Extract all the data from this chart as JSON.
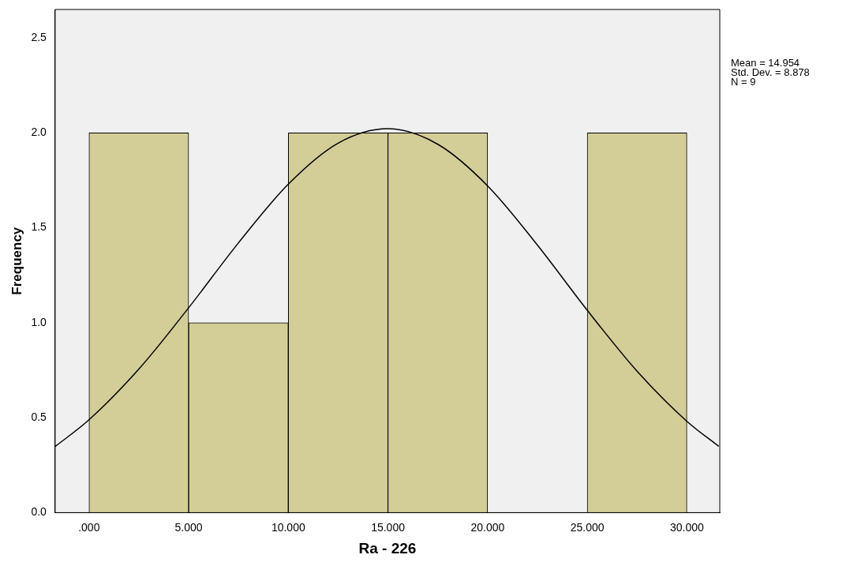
{
  "chart_data": {
    "type": "histogram",
    "xlabel": "Ra - 226",
    "ylabel": "Frequency",
    "bins": [
      0,
      5,
      10,
      15,
      20,
      25,
      30
    ],
    "values": [
      2,
      1,
      2,
      2,
      0,
      2
    ],
    "color": "#d3cd98",
    "series": [
      {
        "type": "line",
        "color": "#000000",
        "marker": "none",
        "x": [
          -1.7,
          0,
          2.5,
          5,
          7.5,
          10,
          12.5,
          15,
          17.5,
          20,
          22.5,
          25,
          27.5,
          30,
          31.6
        ],
        "values": [
          0.348,
          0.489,
          0.756,
          1.079,
          1.421,
          1.73,
          1.946,
          2.022,
          1.94,
          1.721,
          1.409,
          1.066,
          0.745,
          0.481,
          0.349
        ]
      }
    ],
    "xlim": [
      -1.7,
      31.65
    ],
    "ylim": [
      0,
      2.65
    ],
    "xticks": [
      {
        "value": 0,
        "label": ".000"
      },
      {
        "value": 5,
        "label": "5.000"
      },
      {
        "value": 10,
        "label": "10.000"
      },
      {
        "value": 15,
        "label": "15.000"
      },
      {
        "value": 20,
        "label": "20.000"
      },
      {
        "value": 25,
        "label": "25.000"
      },
      {
        "value": 30,
        "label": "30.000"
      }
    ],
    "yticks": [
      {
        "value": 0,
        "label": "0.0"
      },
      {
        "value": 0.5,
        "label": "0.5"
      },
      {
        "value": 1,
        "label": "1.0"
      },
      {
        "value": 1.5,
        "label": "1.5"
      },
      {
        "value": 2,
        "label": "2.0"
      },
      {
        "value": 2.5,
        "label": "2.5"
      }
    ],
    "annotations": [
      "Mean = 14.954",
      "Std. Dev. = 8.878",
      "N = 9"
    ],
    "grid": false,
    "legend": false
  }
}
